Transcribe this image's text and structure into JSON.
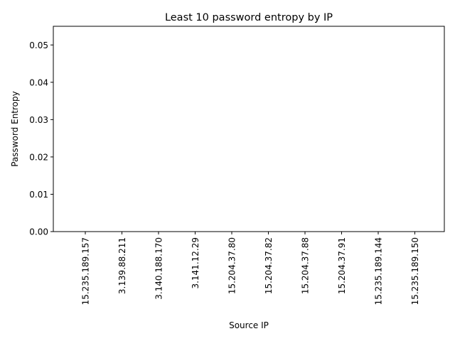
{
  "chart_data": {
    "type": "bar",
    "title": "Least 10 password entropy by IP",
    "xlabel": "Source IP",
    "ylabel": "Password Entropy",
    "categories": [
      "15.235.189.157",
      "3.139.88.211",
      "3.140.188.170",
      "3.141.12.29",
      "15.204.37.80",
      "15.204.37.82",
      "15.204.37.88",
      "15.204.37.91",
      "15.235.189.144",
      "15.235.189.150"
    ],
    "values": [
      0,
      0,
      0,
      0,
      0,
      0,
      0,
      0,
      0,
      0
    ],
    "ylim": [
      0,
      0.055
    ],
    "yticks": [
      "0.00",
      "0.01",
      "0.02",
      "0.03",
      "0.04",
      "0.05"
    ],
    "ytick_values": [
      0,
      0.01,
      0.02,
      0.03,
      0.04,
      0.05
    ],
    "bar_color": "#1f77b4",
    "grid": false,
    "legend": "none"
  }
}
